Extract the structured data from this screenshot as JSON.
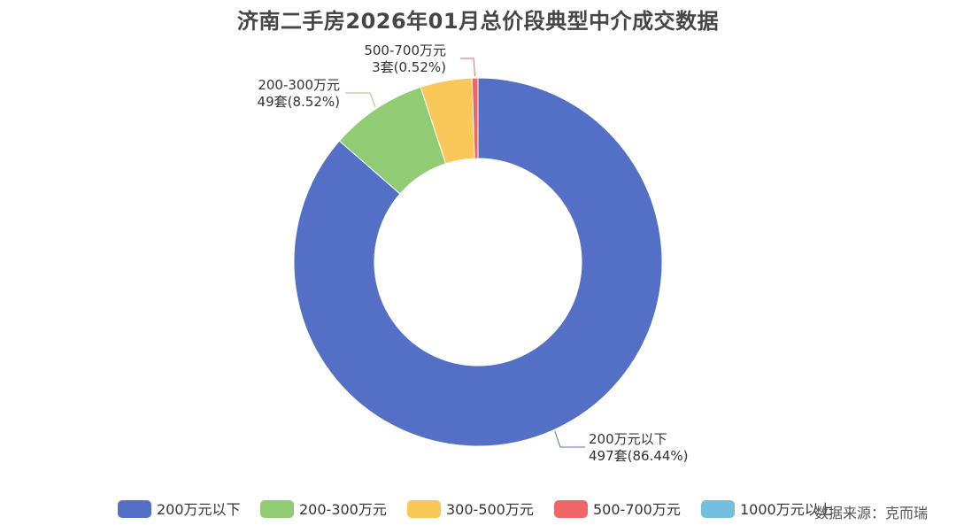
{
  "chart_data": {
    "type": "pie",
    "title": "济南二手房2026年01月总价段典型中介成交数据",
    "categories": [
      "200万元以下",
      "200-300万元",
      "300-500万元",
      "500-700万元",
      "1000万元以上"
    ],
    "series": [
      {
        "values": [
          497,
          49,
          26,
          3,
          0
        ],
        "percents": [
          86.44,
          8.52,
          4.52,
          0.52,
          0
        ]
      }
    ],
    "colors": [
      "#5470c6",
      "#91cc75",
      "#fac858",
      "#ee6666",
      "#73c0de"
    ],
    "data_labels": [
      {
        "category": "200万元以下",
        "line1": "200万元以下",
        "line2": "497套(86.44%)"
      },
      {
        "category": "200-300万元",
        "line1": "200-300万元",
        "line2": "49套(8.52%)"
      },
      {
        "category": "500-700万元",
        "line1": "500-700万元",
        "line2": "3套(0.52%)"
      }
    ],
    "legend_position": "bottom",
    "source": "数据来源：克而瑞"
  }
}
